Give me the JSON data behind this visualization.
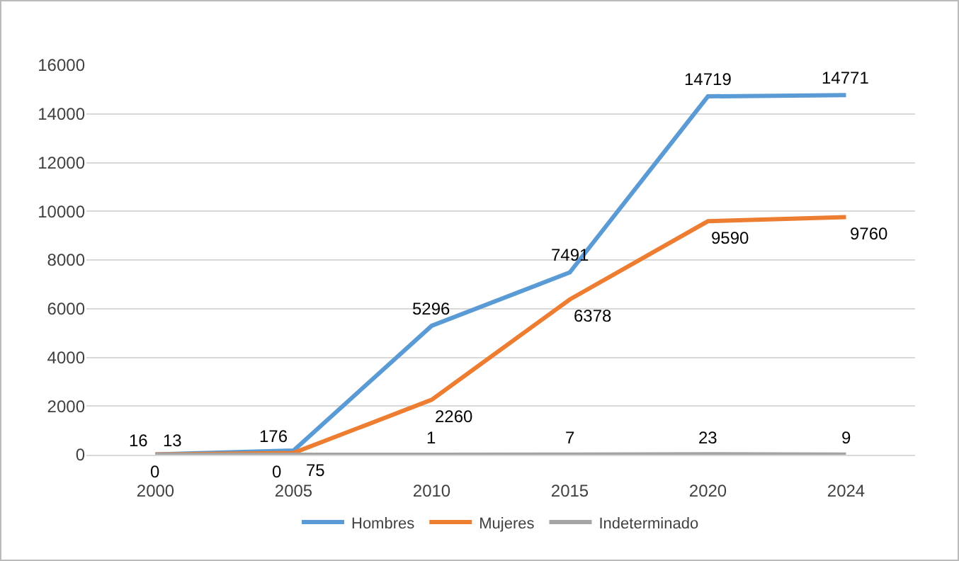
{
  "chart_data": {
    "type": "line",
    "categories": [
      "2000",
      "2005",
      "2010",
      "2015",
      "2020",
      "2024"
    ],
    "series": [
      {
        "name": "Hombres",
        "color": "#5b9bd5",
        "values": [
          16,
          176,
          5296,
          7491,
          14719,
          14771
        ]
      },
      {
        "name": "Mujeres",
        "color": "#ed7d31",
        "values": [
          13,
          75,
          2260,
          6378,
          9590,
          9760
        ]
      },
      {
        "name": "Indeterminado",
        "color": "#a5a5a5",
        "values": [
          0,
          0,
          1,
          7,
          23,
          9
        ]
      }
    ],
    "ylim": [
      0,
      16000
    ],
    "yticks": [
      0,
      2000,
      4000,
      6000,
      8000,
      10000,
      12000,
      14000,
      16000
    ],
    "grid": "y",
    "legend": "bottom",
    "data_labels": true,
    "marker": "none",
    "line_style": "solid"
  }
}
